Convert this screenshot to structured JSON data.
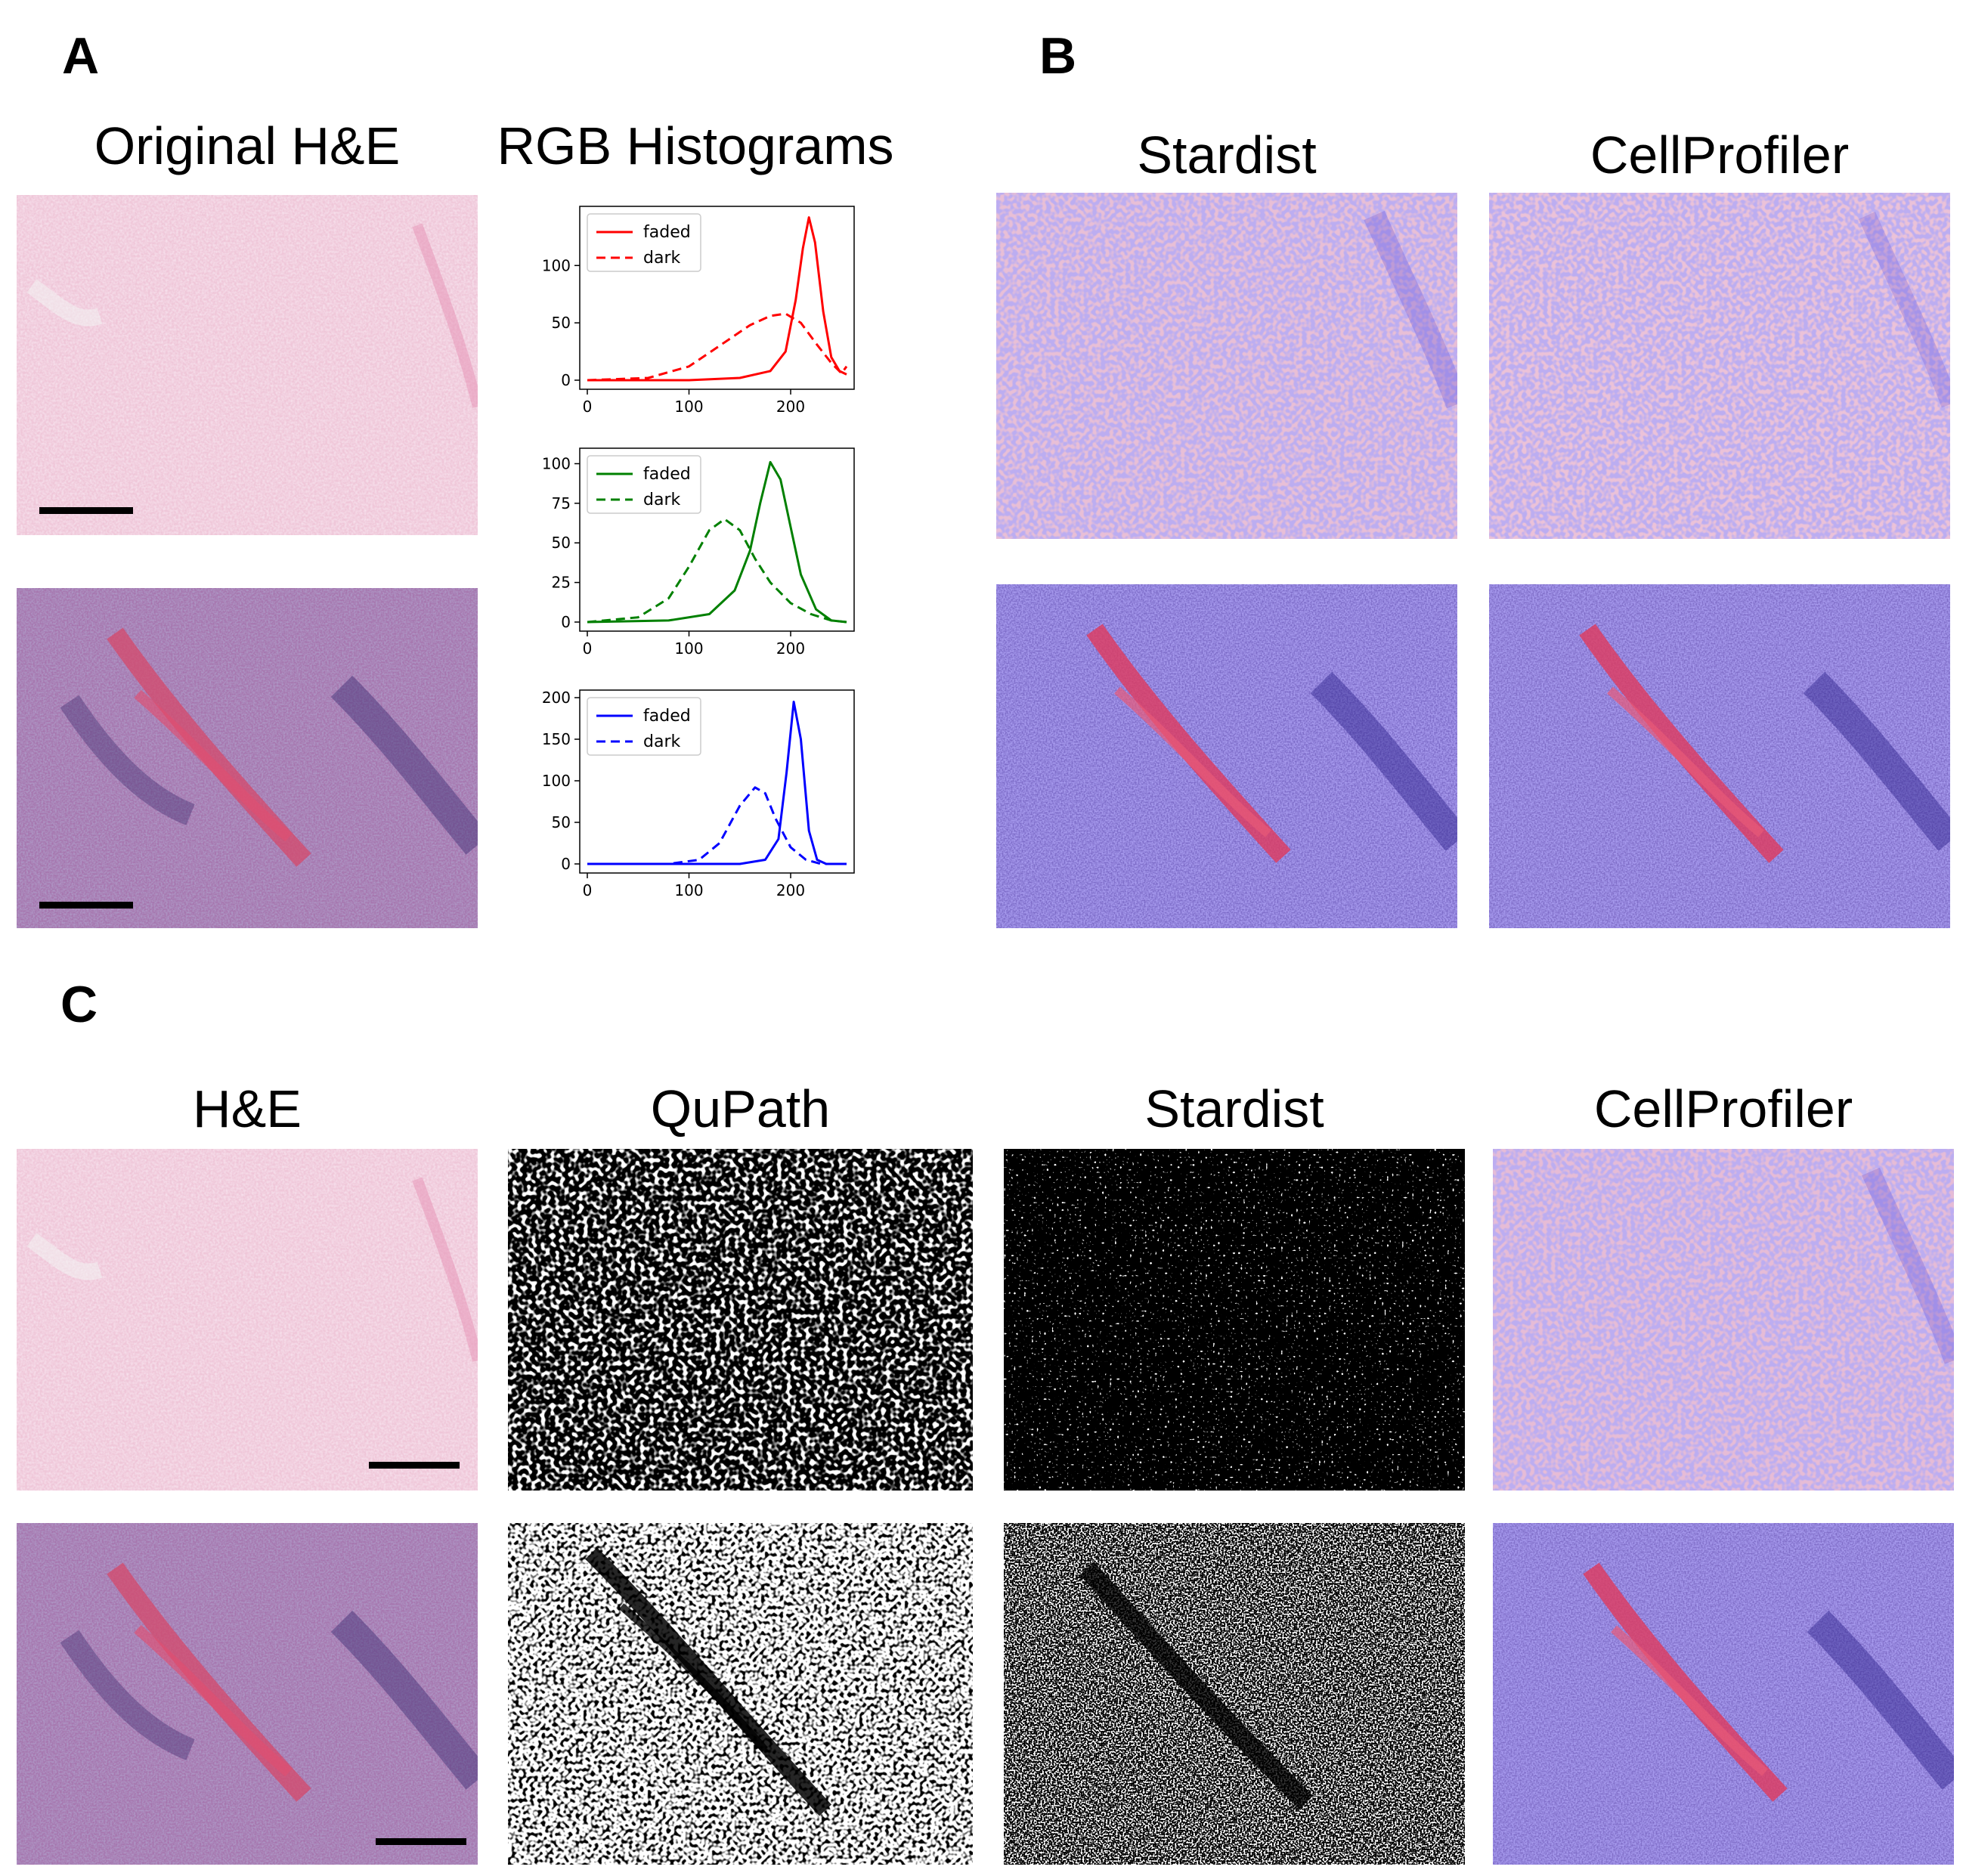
{
  "panels": {
    "a": {
      "letter": "A",
      "title_original": "Original H&E",
      "title_hist": "RGB Histograms"
    },
    "b": {
      "letter": "B",
      "title_stardist": "Stardist",
      "title_cellprofiler": "CellProfiler"
    },
    "c": {
      "letter": "C",
      "title_he": "H&E",
      "title_qupath": "QuPath",
      "title_stardist": "Stardist",
      "title_cellprofiler": "CellProfiler"
    }
  },
  "tissue_images": [
    "faded-he-image",
    "dark-he-image",
    "stardist-faded-overlay",
    "cellprofiler-faded-overlay",
    "stardist-dark-overlay",
    "cellprofiler-dark-overlay",
    "he-faded-image",
    "he-dark-image",
    "qupath-faded-mask",
    "qupath-dark-mask",
    "stardist-faded-mask",
    "stardist-dark-mask",
    "cellprofiler-faded-overlay-c",
    "cellprofiler-dark-overlay-c"
  ],
  "colors": {
    "faded_pink": "#efc6d8",
    "dark_purple": "#a878b0",
    "nucleus_blue": "#6a5ad8",
    "red_channel": "#ff0000",
    "green_channel": "#008000",
    "blue_channel": "#0000ff"
  },
  "chart_data": [
    {
      "type": "line",
      "channel": "red",
      "x_ticks": [
        "0",
        "100",
        "200"
      ],
      "y_ticks": [
        "0",
        "50",
        "100"
      ],
      "xlim": [
        0,
        255
      ],
      "ylim": [
        0,
        145
      ],
      "legend_position": "upper-left",
      "series": [
        {
          "name": "faded",
          "style": "solid",
          "x": [
            0,
            100,
            150,
            180,
            195,
            205,
            212,
            218,
            224,
            232,
            240,
            248,
            255
          ],
          "y": [
            0,
            0,
            2,
            8,
            25,
            70,
            115,
            142,
            120,
            60,
            20,
            8,
            5
          ]
        },
        {
          "name": "dark",
          "style": "dashed",
          "x": [
            0,
            60,
            100,
            130,
            160,
            180,
            195,
            210,
            225,
            240,
            250,
            255
          ],
          "y": [
            0,
            2,
            12,
            30,
            48,
            56,
            58,
            50,
            32,
            15,
            6,
            12
          ]
        }
      ]
    },
    {
      "type": "line",
      "channel": "green",
      "x_ticks": [
        "0",
        "100",
        "200"
      ],
      "y_ticks": [
        "0",
        "25",
        "50",
        "75",
        "100"
      ],
      "xlim": [
        0,
        255
      ],
      "ylim": [
        0,
        105
      ],
      "legend_position": "upper-left",
      "series": [
        {
          "name": "faded",
          "style": "solid",
          "x": [
            0,
            80,
            120,
            145,
            160,
            170,
            180,
            190,
            200,
            210,
            225,
            240,
            255
          ],
          "y": [
            0,
            1,
            5,
            20,
            45,
            75,
            101,
            90,
            60,
            30,
            8,
            1,
            0
          ]
        },
        {
          "name": "dark",
          "style": "dashed",
          "x": [
            0,
            50,
            80,
            100,
            120,
            135,
            150,
            165,
            180,
            200,
            220,
            240,
            255
          ],
          "y": [
            0,
            3,
            15,
            35,
            58,
            65,
            58,
            40,
            25,
            12,
            5,
            1,
            0
          ]
        }
      ]
    },
    {
      "type": "line",
      "channel": "blue",
      "x_ticks": [
        "0",
        "100",
        "200"
      ],
      "y_ticks": [
        "0",
        "50",
        "100",
        "150",
        "200"
      ],
      "xlim": [
        0,
        255
      ],
      "ylim": [
        0,
        200
      ],
      "legend_position": "upper-left",
      "series": [
        {
          "name": "faded",
          "style": "solid",
          "x": [
            0,
            150,
            175,
            188,
            196,
            203,
            210,
            218,
            226,
            235,
            255
          ],
          "y": [
            0,
            0,
            5,
            30,
            110,
            195,
            150,
            40,
            5,
            0,
            0
          ]
        },
        {
          "name": "dark",
          "style": "dashed",
          "x": [
            0,
            80,
            110,
            130,
            150,
            165,
            175,
            185,
            200,
            215,
            230,
            255
          ],
          "y": [
            0,
            0,
            5,
            25,
            70,
            92,
            85,
            55,
            20,
            5,
            0,
            0
          ]
        }
      ]
    }
  ]
}
